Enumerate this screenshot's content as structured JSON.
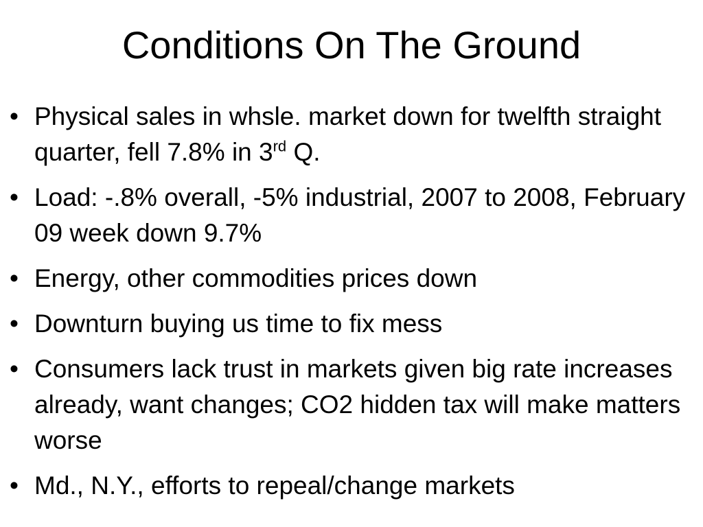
{
  "slide": {
    "title": "Conditions On The Ground",
    "bullet_symbol": "•",
    "bullets": [
      {
        "text_before": "Physical sales in whsle. market down for twelfth straight quarter, fell 7.8% in 3",
        "superscript": "rd",
        "text_after": " Q."
      },
      {
        "text": "Load: -.8% overall, -5% industrial, 2007 to 2008, February 09 week down 9.7%"
      },
      {
        "text": "Energy, other commodities prices down"
      },
      {
        "text": "Downturn buying us time to fix mess"
      },
      {
        "text": "Consumers lack trust in markets given big rate increases already, want changes;  CO2 hidden tax will make matters worse"
      },
      {
        "text": "Md., N.Y., efforts to repeal/change markets"
      }
    ]
  }
}
